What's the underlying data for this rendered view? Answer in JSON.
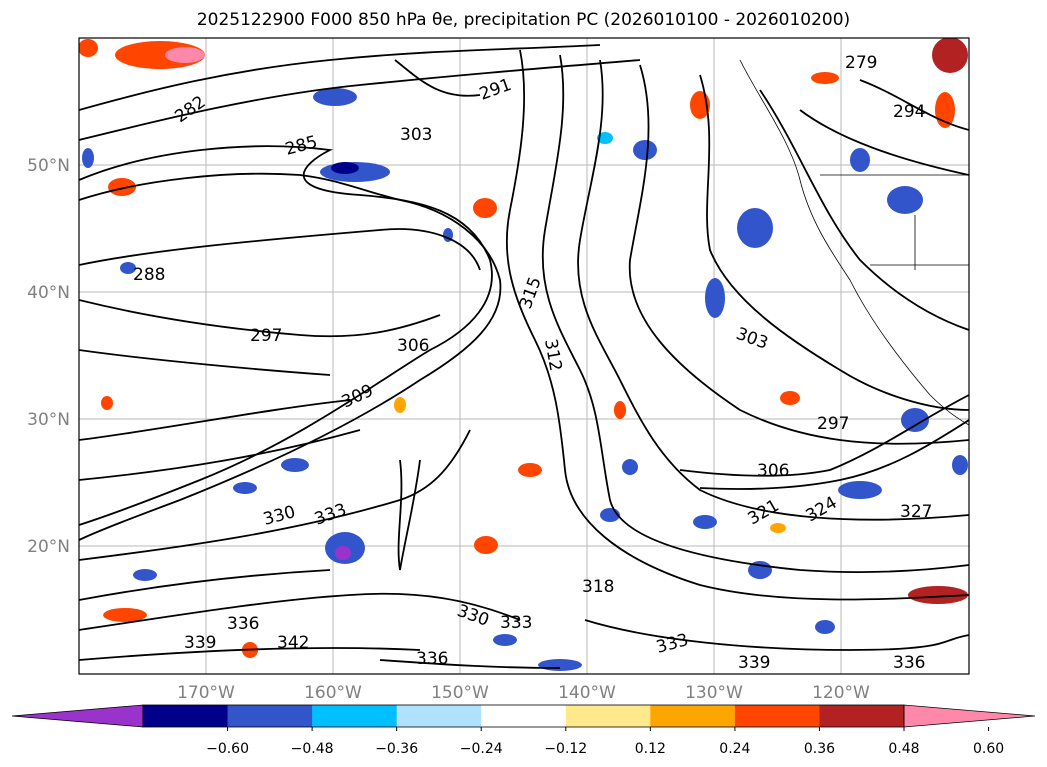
{
  "title": "2025122900 F000 850 hPa θe, precipitation PC (2026010100 - 2026010200)",
  "map": {
    "latitude_labels": [
      "50°N",
      "40°N",
      "30°N",
      "20°N"
    ],
    "longitude_labels": [
      "170°W",
      "160°W",
      "150°W",
      "140°W",
      "130°W",
      "120°W"
    ],
    "gridlines": true,
    "contour_color": "#000000",
    "contour_labels": [
      "282",
      "285",
      "288",
      "291",
      "294",
      "297",
      "303",
      "306",
      "309",
      "312",
      "315",
      "318",
      "321",
      "324",
      "327",
      "330",
      "333",
      "336",
      "339",
      "342",
      "279"
    ]
  },
  "colorbar": {
    "extend": "both",
    "tick_labels": [
      "−0.60",
      "−0.48",
      "−0.36",
      "−0.24",
      "−0.12",
      "0.12",
      "0.24",
      "0.36",
      "0.48",
      "0.60"
    ],
    "colors": [
      "#9933cc",
      "#00008b",
      "#3355cc",
      "#00bfff",
      "#b0e2ff",
      "#ffffff",
      "#ffe98a",
      "#ffa500",
      "#ff4500",
      "#b22222",
      "#ff88aa"
    ]
  }
}
